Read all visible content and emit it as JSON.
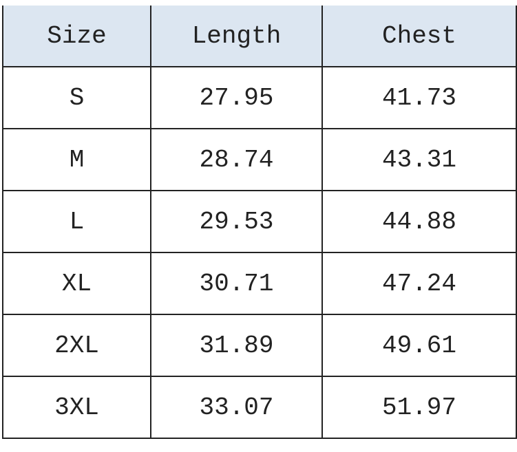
{
  "table": {
    "headers": [
      "Size",
      "Length",
      "Chest"
    ],
    "rows": [
      [
        "S",
        "27.95",
        "41.73"
      ],
      [
        "M",
        "28.74",
        "43.31"
      ],
      [
        "L",
        "29.53",
        "44.88"
      ],
      [
        "XL",
        "30.71",
        "47.24"
      ],
      [
        "2XL",
        "31.89",
        "49.61"
      ],
      [
        "3XL",
        "33.07",
        "51.97"
      ]
    ],
    "header_bg": "#dce6f1"
  }
}
